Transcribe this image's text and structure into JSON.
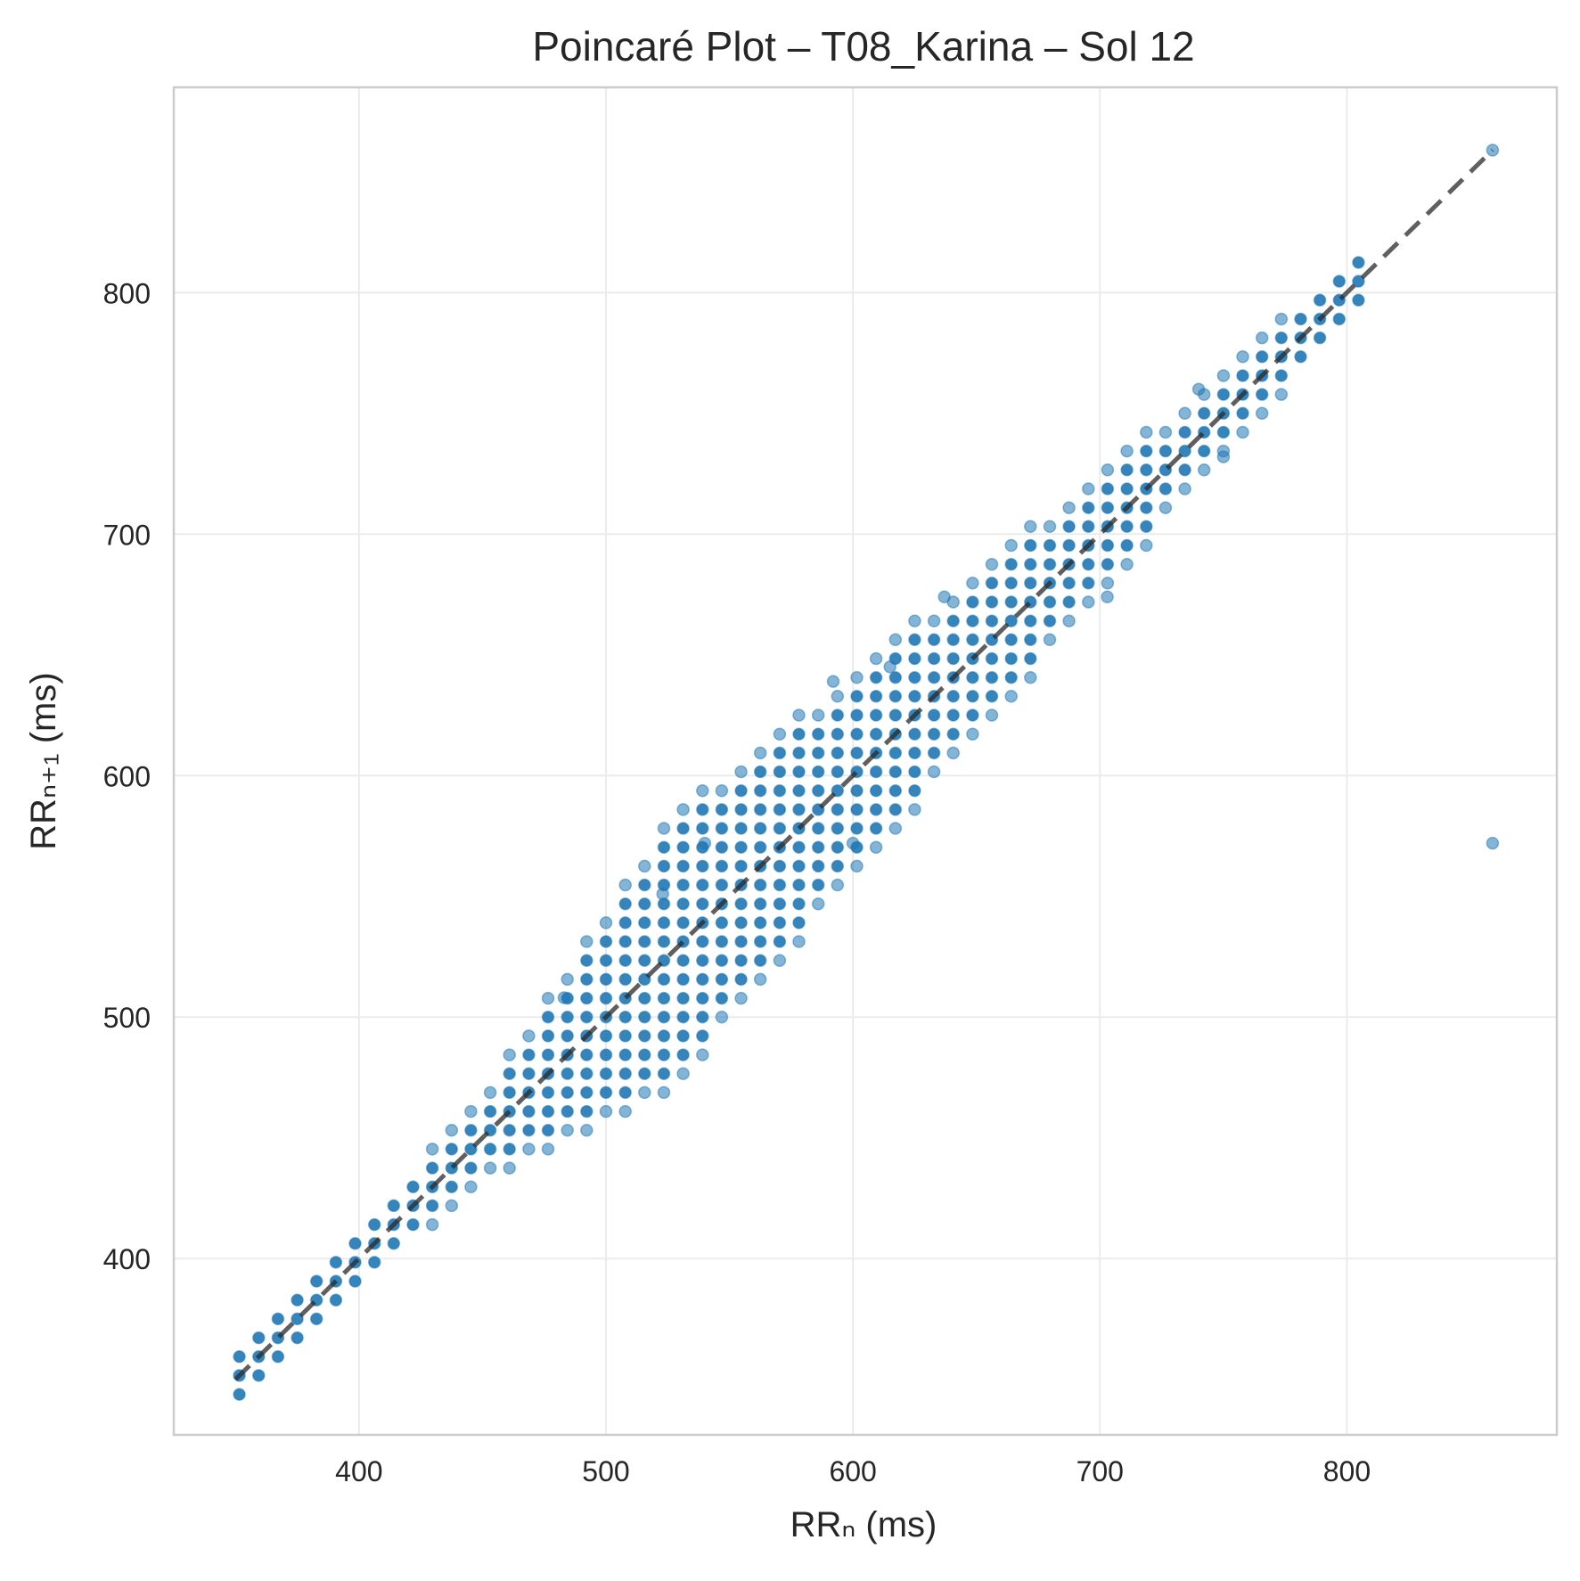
{
  "chart_data": {
    "type": "scatter",
    "title": "Poincaré Plot – T08_Karina – Sol 12",
    "xlabel": "RRₙ (ms)",
    "ylabel": "RRₙ₊₁ (ms)",
    "xlim": [
      325,
      885
    ],
    "ylim": [
      327,
      885
    ],
    "xticks": [
      400,
      500,
      600,
      700,
      800
    ],
    "yticks": [
      400,
      500,
      600,
      700,
      800
    ],
    "grid": true,
    "legend": "none",
    "colors": {
      "points": "#1f77b4",
      "identity_line": "#555555",
      "axes": "#cccccc",
      "grid": "#ebebeb"
    },
    "identity_line": {
      "from": 350,
      "to": 859,
      "style": "dashed"
    },
    "grid_step_ms": 7.8125,
    "cluster": [
      {
        "x": 350,
        "spread": 1
      },
      {
        "x": 400,
        "spread": 1
      },
      {
        "x": 450,
        "spread": 2
      },
      {
        "x": 480,
        "spread": 4
      },
      {
        "x": 500,
        "spread": 5
      },
      {
        "x": 530,
        "spread": 7
      },
      {
        "x": 560,
        "spread": 6
      },
      {
        "x": 600,
        "spread": 5
      },
      {
        "x": 650,
        "spread": 4
      },
      {
        "x": 700,
        "spread": 3
      },
      {
        "x": 750,
        "spread": 2
      },
      {
        "x": 800,
        "spread": 1
      },
      {
        "x": 812,
        "spread": 1
      }
    ],
    "points_extra": [
      {
        "x": 859,
        "y": 859
      },
      {
        "x": 859,
        "y": 572
      },
      {
        "x": 483,
        "y": 508
      },
      {
        "x": 523,
        "y": 551
      },
      {
        "x": 540,
        "y": 572
      },
      {
        "x": 592,
        "y": 639
      },
      {
        "x": 637,
        "y": 674
      },
      {
        "x": 600,
        "y": 572
      },
      {
        "x": 703,
        "y": 674
      },
      {
        "x": 615,
        "y": 645
      },
      {
        "x": 740,
        "y": 760
      },
      {
        "x": 750,
        "y": 732
      }
    ]
  }
}
